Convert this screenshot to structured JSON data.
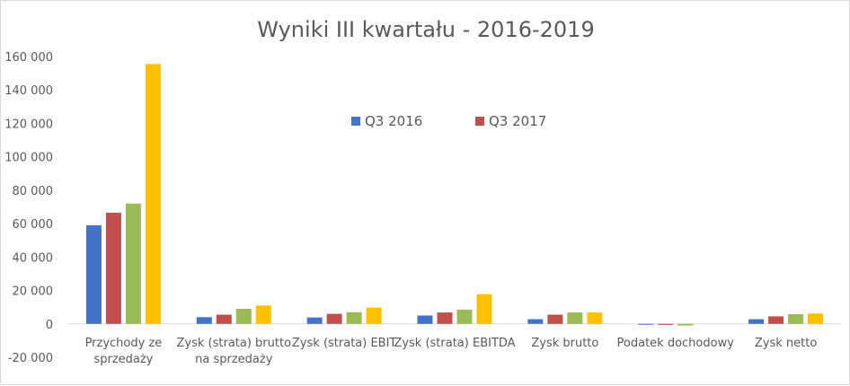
{
  "chart_data": {
    "type": "bar",
    "title": "Wyniki III kwartału - 2016-2019",
    "categories": [
      [
        "Przychody ze",
        "sprzedaży"
      ],
      [
        "Zysk (strata) brutto",
        "na sprzedaży"
      ],
      [
        "Zysk (strata) EBIT"
      ],
      [
        "Zysk (strata) EBITDA"
      ],
      [
        "Zysk brutto"
      ],
      [
        "Podatek dochodowy"
      ],
      [
        "Zysk netto"
      ]
    ],
    "series": [
      {
        "name": "Q3 2016",
        "color": "#4472c4",
        "values": [
          59000,
          4000,
          3800,
          5000,
          2800,
          -200,
          2800
        ]
      },
      {
        "name": "Q3 2017",
        "color": "#c0504d",
        "values": [
          66500,
          5500,
          6000,
          6800,
          5500,
          -600,
          4500
        ]
      },
      {
        "values": [
          72000,
          9000,
          7000,
          8500,
          6800,
          -1000,
          5800
        ],
        "color": "#9bbb59"
      },
      {
        "values": [
          155500,
          11000,
          9800,
          17800,
          6800,
          0,
          6200
        ],
        "color": "#ffc000"
      }
    ],
    "y_ticks": [
      "-20 000",
      "0",
      "20 000",
      "40 000",
      "60 000",
      "80 000",
      "100 000",
      "120 000",
      "140 000",
      "160 000"
    ],
    "ylim": [
      -20000,
      160000
    ],
    "legend_position": "inside-top-center",
    "grid": false
  }
}
